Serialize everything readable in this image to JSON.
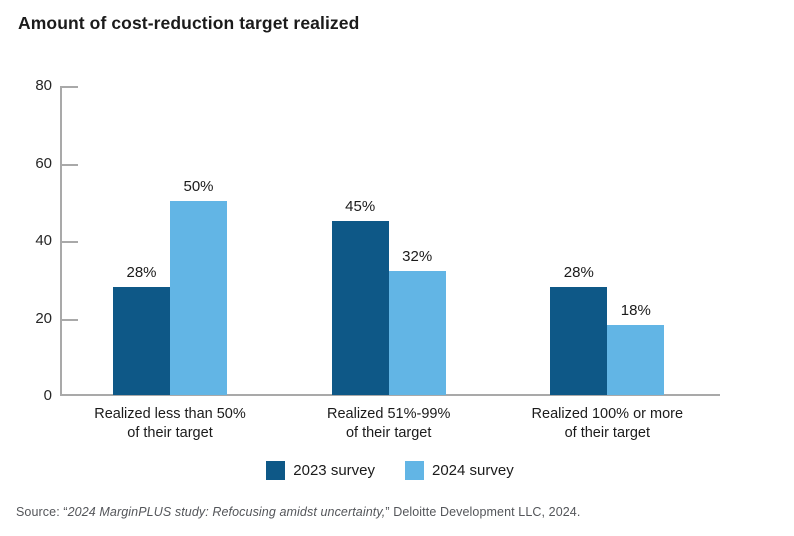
{
  "title": "Amount of cost-reduction target realized",
  "source": {
    "prefix": "Source: “",
    "italic": "2024 MarginPLUS study: Refocusing amidst uncertainty,",
    "suffix": "” Deloitte Development LLC, 2024."
  },
  "chart_data": {
    "type": "bar",
    "title": "Amount of cost-reduction target realized",
    "categories": [
      [
        "Realized less than 50%",
        "of their target"
      ],
      [
        "Realized 51%-99%",
        "of their target"
      ],
      [
        "Realized 100% or more",
        "of their target"
      ]
    ],
    "series": [
      {
        "name": "2023 survey",
        "color": "#0E5887",
        "values": [
          28,
          45,
          28
        ]
      },
      {
        "name": "2024 survey",
        "color": "#62B5E5",
        "values": [
          50,
          32,
          18
        ]
      }
    ],
    "value_label_suffix": "%",
    "ylim": [
      0,
      80
    ],
    "yticks": [
      0,
      20,
      40,
      60,
      80
    ],
    "grid": false,
    "legend_position": "bottom",
    "axis_color": "#A9A9A9",
    "xlabel": "",
    "ylabel": ""
  }
}
